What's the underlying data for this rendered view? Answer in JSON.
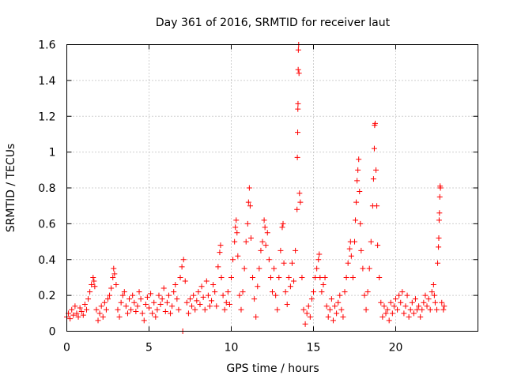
{
  "chart_data": {
    "type": "scatter",
    "title": "Day 361 of 2016, SRMTID for receiver laut",
    "xlabel": "GPS time / hours",
    "ylabel": "SRMTID / TECUs",
    "xlim": [
      0,
      25
    ],
    "ylim": [
      0,
      1.6
    ],
    "x_ticks": [
      0,
      5,
      10,
      15,
      20
    ],
    "x_tick_labels": [
      "0",
      "5",
      "10",
      "15",
      "20"
    ],
    "y_ticks": [
      0,
      0.2,
      0.4,
      0.6,
      0.8,
      1,
      1.2,
      1.4,
      1.6
    ],
    "y_tick_labels": [
      "0",
      "0.2",
      "0.4",
      "0.6",
      "0.8",
      "1",
      "1.2",
      "1.4",
      "1.6"
    ],
    "grid": true,
    "marker": "+",
    "series": [
      {
        "name": "SRMTID",
        "color": "#ff0000",
        "points": [
          [
            0.0,
            0.08
          ],
          [
            0.1,
            0.1
          ],
          [
            0.2,
            0.07
          ],
          [
            0.3,
            0.12
          ],
          [
            0.4,
            0.09
          ],
          [
            0.5,
            0.14
          ],
          [
            0.6,
            0.1
          ],
          [
            0.7,
            0.08
          ],
          [
            0.8,
            0.13
          ],
          [
            0.9,
            0.11
          ],
          [
            1.0,
            0.09
          ],
          [
            1.1,
            0.15
          ],
          [
            1.2,
            0.12
          ],
          [
            1.3,
            0.18
          ],
          [
            1.4,
            0.22
          ],
          [
            1.5,
            0.26
          ],
          [
            1.6,
            0.3
          ],
          [
            1.65,
            0.28
          ],
          [
            1.7,
            0.25
          ],
          [
            1.8,
            0.12
          ],
          [
            1.9,
            0.06
          ],
          [
            2.0,
            0.1
          ],
          [
            2.1,
            0.14
          ],
          [
            2.2,
            0.08
          ],
          [
            2.3,
            0.16
          ],
          [
            2.4,
            0.12
          ],
          [
            2.5,
            0.18
          ],
          [
            2.6,
            0.2
          ],
          [
            2.7,
            0.24
          ],
          [
            2.8,
            0.3
          ],
          [
            2.85,
            0.35
          ],
          [
            2.9,
            0.32
          ],
          [
            3.0,
            0.26
          ],
          [
            3.1,
            0.12
          ],
          [
            3.2,
            0.08
          ],
          [
            3.3,
            0.16
          ],
          [
            3.4,
            0.2
          ],
          [
            3.5,
            0.22
          ],
          [
            3.6,
            0.14
          ],
          [
            3.7,
            0.1
          ],
          [
            3.8,
            0.18
          ],
          [
            3.9,
            0.12
          ],
          [
            4.0,
            0.2
          ],
          [
            4.1,
            0.16
          ],
          [
            4.2,
            0.11
          ],
          [
            4.3,
            0.14
          ],
          [
            4.4,
            0.22
          ],
          [
            4.5,
            0.18
          ],
          [
            4.6,
            0.1
          ],
          [
            4.7,
            0.06
          ],
          [
            4.8,
            0.15
          ],
          [
            4.9,
            0.19
          ],
          [
            5.0,
            0.13
          ],
          [
            5.1,
            0.21
          ],
          [
            5.2,
            0.1
          ],
          [
            5.3,
            0.16
          ],
          [
            5.4,
            0.08
          ],
          [
            5.5,
            0.12
          ],
          [
            5.6,
            0.2
          ],
          [
            5.7,
            0.15
          ],
          [
            5.8,
            0.18
          ],
          [
            5.9,
            0.24
          ],
          [
            6.0,
            0.11
          ],
          [
            6.1,
            0.16
          ],
          [
            6.2,
            0.2
          ],
          [
            6.3,
            0.1
          ],
          [
            6.4,
            0.14
          ],
          [
            6.5,
            0.22
          ],
          [
            6.6,
            0.26
          ],
          [
            6.7,
            0.18
          ],
          [
            6.8,
            0.12
          ],
          [
            6.9,
            0.3
          ],
          [
            7.0,
            0.36
          ],
          [
            7.05,
            0.0
          ],
          [
            7.1,
            0.4
          ],
          [
            7.2,
            0.28
          ],
          [
            7.3,
            0.16
          ],
          [
            7.4,
            0.1
          ],
          [
            7.5,
            0.18
          ],
          [
            7.6,
            0.14
          ],
          [
            7.7,
            0.2
          ],
          [
            7.8,
            0.12
          ],
          [
            7.9,
            0.17
          ],
          [
            8.0,
            0.22
          ],
          [
            8.1,
            0.15
          ],
          [
            8.2,
            0.25
          ],
          [
            8.3,
            0.19
          ],
          [
            8.4,
            0.12
          ],
          [
            8.5,
            0.28
          ],
          [
            8.6,
            0.2
          ],
          [
            8.7,
            0.14
          ],
          [
            8.8,
            0.17
          ],
          [
            8.9,
            0.26
          ],
          [
            9.0,
            0.22
          ],
          [
            9.1,
            0.14
          ],
          [
            9.2,
            0.36
          ],
          [
            9.3,
            0.44
          ],
          [
            9.35,
            0.48
          ],
          [
            9.4,
            0.3
          ],
          [
            9.5,
            0.2
          ],
          [
            9.6,
            0.12
          ],
          [
            9.7,
            0.16
          ],
          [
            9.8,
            0.22
          ],
          [
            9.9,
            0.15
          ],
          [
            10.0,
            0.3
          ],
          [
            10.1,
            0.4
          ],
          [
            10.2,
            0.5
          ],
          [
            10.25,
            0.58
          ],
          [
            10.3,
            0.62
          ],
          [
            10.35,
            0.55
          ],
          [
            10.4,
            0.42
          ],
          [
            10.5,
            0.2
          ],
          [
            10.6,
            0.12
          ],
          [
            10.7,
            0.22
          ],
          [
            10.8,
            0.35
          ],
          [
            10.9,
            0.5
          ],
          [
            11.0,
            0.6
          ],
          [
            11.05,
            0.72
          ],
          [
            11.1,
            0.8
          ],
          [
            11.15,
            0.7
          ],
          [
            11.2,
            0.52
          ],
          [
            11.3,
            0.3
          ],
          [
            11.4,
            0.18
          ],
          [
            11.5,
            0.08
          ],
          [
            11.6,
            0.25
          ],
          [
            11.7,
            0.35
          ],
          [
            11.8,
            0.45
          ],
          [
            11.9,
            0.5
          ],
          [
            12.0,
            0.62
          ],
          [
            12.05,
            0.58
          ],
          [
            12.1,
            0.48
          ],
          [
            12.2,
            0.55
          ],
          [
            12.3,
            0.4
          ],
          [
            12.4,
            0.3
          ],
          [
            12.5,
            0.22
          ],
          [
            12.6,
            0.35
          ],
          [
            12.7,
            0.2
          ],
          [
            12.8,
            0.12
          ],
          [
            12.9,
            0.3
          ],
          [
            13.0,
            0.45
          ],
          [
            13.1,
            0.58
          ],
          [
            13.15,
            0.6
          ],
          [
            13.2,
            0.38
          ],
          [
            13.3,
            0.22
          ],
          [
            13.4,
            0.15
          ],
          [
            13.5,
            0.3
          ],
          [
            13.6,
            0.25
          ],
          [
            13.7,
            0.38
          ],
          [
            13.8,
            0.28
          ],
          [
            13.9,
            0.45
          ],
          [
            14.0,
            0.68
          ],
          [
            14.02,
            0.97
          ],
          [
            14.04,
            1.11
          ],
          [
            14.05,
            1.24
          ],
          [
            14.06,
            1.27
          ],
          [
            14.07,
            1.46
          ],
          [
            14.08,
            1.57
          ],
          [
            14.1,
            1.6
          ],
          [
            14.12,
            1.44
          ],
          [
            14.15,
            0.77
          ],
          [
            14.2,
            0.72
          ],
          [
            14.3,
            0.3
          ],
          [
            14.4,
            0.12
          ],
          [
            14.5,
            0.04
          ],
          [
            14.6,
            0.1
          ],
          [
            14.7,
            0.14
          ],
          [
            14.8,
            0.08
          ],
          [
            14.9,
            0.18
          ],
          [
            15.0,
            0.22
          ],
          [
            15.1,
            0.3
          ],
          [
            15.2,
            0.35
          ],
          [
            15.3,
            0.4
          ],
          [
            15.35,
            0.43
          ],
          [
            15.4,
            0.3
          ],
          [
            15.5,
            0.22
          ],
          [
            15.6,
            0.26
          ],
          [
            15.7,
            0.3
          ],
          [
            15.8,
            0.14
          ],
          [
            15.9,
            0.08
          ],
          [
            16.0,
            0.12
          ],
          [
            16.1,
            0.18
          ],
          [
            16.2,
            0.06
          ],
          [
            16.3,
            0.14
          ],
          [
            16.4,
            0.1
          ],
          [
            16.5,
            0.16
          ],
          [
            16.6,
            0.2
          ],
          [
            16.7,
            0.12
          ],
          [
            16.8,
            0.08
          ],
          [
            16.9,
            0.22
          ],
          [
            17.0,
            0.3
          ],
          [
            17.1,
            0.38
          ],
          [
            17.2,
            0.46
          ],
          [
            17.25,
            0.5
          ],
          [
            17.3,
            0.42
          ],
          [
            17.4,
            0.3
          ],
          [
            17.5,
            0.5
          ],
          [
            17.55,
            0.62
          ],
          [
            17.6,
            0.72
          ],
          [
            17.65,
            0.84
          ],
          [
            17.7,
            0.9
          ],
          [
            17.75,
            0.96
          ],
          [
            17.8,
            0.78
          ],
          [
            17.85,
            0.6
          ],
          [
            17.9,
            0.45
          ],
          [
            18.0,
            0.35
          ],
          [
            18.1,
            0.2
          ],
          [
            18.2,
            0.12
          ],
          [
            18.3,
            0.22
          ],
          [
            18.4,
            0.35
          ],
          [
            18.5,
            0.5
          ],
          [
            18.6,
            0.7
          ],
          [
            18.65,
            0.85
          ],
          [
            18.7,
            1.02
          ],
          [
            18.72,
            1.15
          ],
          [
            18.75,
            1.16
          ],
          [
            18.8,
            0.9
          ],
          [
            18.85,
            0.7
          ],
          [
            18.9,
            0.48
          ],
          [
            19.0,
            0.3
          ],
          [
            19.1,
            0.16
          ],
          [
            19.2,
            0.08
          ],
          [
            19.3,
            0.14
          ],
          [
            19.4,
            0.1
          ],
          [
            19.5,
            0.12
          ],
          [
            19.6,
            0.06
          ],
          [
            19.7,
            0.16
          ],
          [
            19.8,
            0.1
          ],
          [
            19.9,
            0.14
          ],
          [
            20.0,
            0.18
          ],
          [
            20.1,
            0.12
          ],
          [
            20.2,
            0.2
          ],
          [
            20.3,
            0.16
          ],
          [
            20.4,
            0.22
          ],
          [
            20.5,
            0.1
          ],
          [
            20.6,
            0.14
          ],
          [
            20.7,
            0.2
          ],
          [
            20.8,
            0.08
          ],
          [
            20.9,
            0.12
          ],
          [
            21.0,
            0.16
          ],
          [
            21.1,
            0.1
          ],
          [
            21.2,
            0.18
          ],
          [
            21.3,
            0.12
          ],
          [
            21.4,
            0.14
          ],
          [
            21.5,
            0.08
          ],
          [
            21.6,
            0.12
          ],
          [
            21.7,
            0.16
          ],
          [
            21.8,
            0.2
          ],
          [
            21.9,
            0.14
          ],
          [
            22.0,
            0.18
          ],
          [
            22.1,
            0.12
          ],
          [
            22.2,
            0.22
          ],
          [
            22.3,
            0.26
          ],
          [
            22.35,
            0.2
          ],
          [
            22.4,
            0.16
          ],
          [
            22.5,
            0.12
          ],
          [
            22.55,
            0.38
          ],
          [
            22.6,
            0.47
          ],
          [
            22.62,
            0.52
          ],
          [
            22.64,
            0.62
          ],
          [
            22.66,
            0.66
          ],
          [
            22.68,
            0.75
          ],
          [
            22.7,
            0.81
          ],
          [
            22.72,
            0.8
          ],
          [
            22.8,
            0.16
          ],
          [
            22.9,
            0.12
          ],
          [
            22.95,
            0.14
          ]
        ]
      }
    ]
  }
}
